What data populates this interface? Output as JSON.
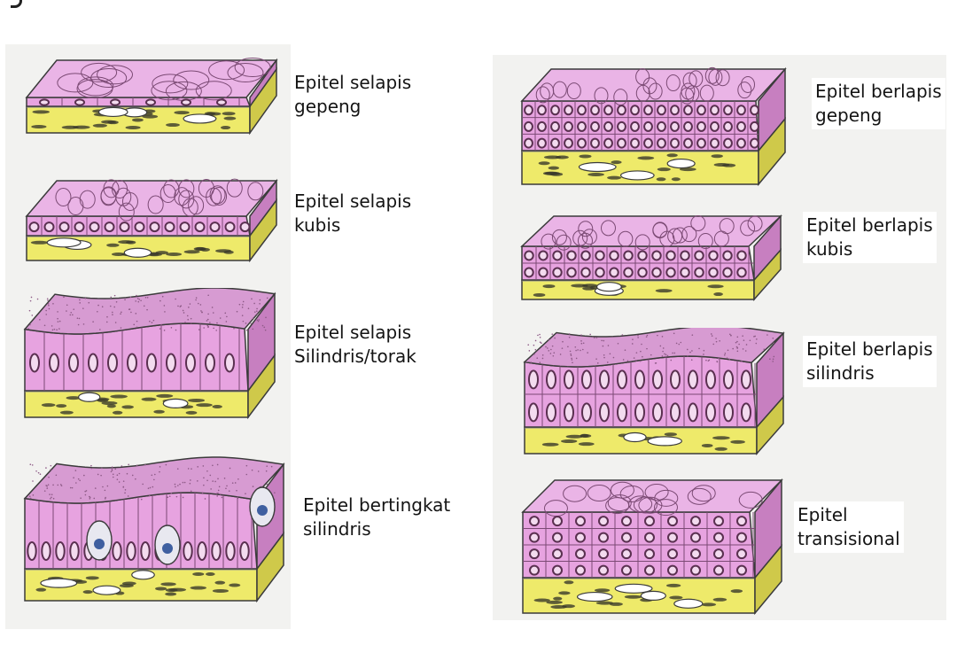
{
  "diagrams": [
    {
      "key": "selapis_gepeng",
      "lines": [
        "Epitel selapis",
        "gepeng"
      ]
    },
    {
      "key": "selapis_kubis",
      "lines": [
        "Epitel selapis",
        "kubis"
      ]
    },
    {
      "key": "selapis_silindris",
      "lines": [
        "Epitel selapis",
        "Silindris/torak"
      ]
    },
    {
      "key": "bertingkat_silindris",
      "lines": [
        "Epitel bertingkat",
        "silindris"
      ]
    },
    {
      "key": "berlapis_gepeng",
      "lines": [
        "Epitel berlapis",
        "gepeng"
      ]
    },
    {
      "key": "berlapis_kubis",
      "lines": [
        "Epitel berlapis",
        "kubis"
      ]
    },
    {
      "key": "berlapis_silindris",
      "lines": [
        "Epitel berlapis",
        "silindris"
      ]
    },
    {
      "key": "transisional",
      "lines": [
        "Epitel",
        "transisional"
      ]
    }
  ],
  "colors": {
    "epithelium": "#e7a3e0",
    "epithelium_top": "#eab4e6",
    "epithelium_side": "#c77fc0",
    "connective": "#eeea6a",
    "connective_side": "#cfc94a",
    "outline": "#3b3b3b",
    "nucleus": "#5a3050",
    "vessel": "#ffffff"
  },
  "icons": {
    "corner_mark": "bracket-mark-icon",
    "tissue_block": "tissue-block-icon",
    "goblet_cell": "goblet-cell-icon"
  }
}
